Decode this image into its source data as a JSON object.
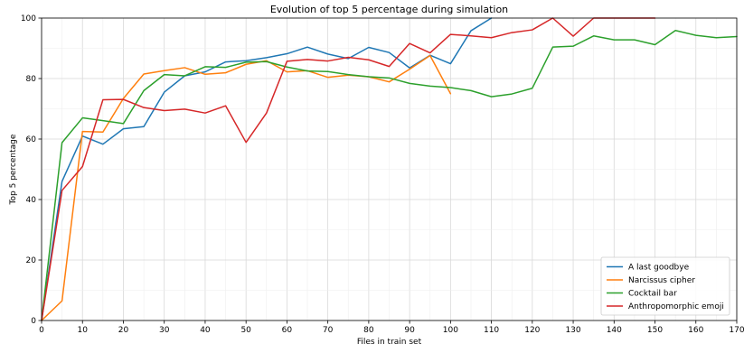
{
  "chart_data": {
    "type": "line",
    "title": "Evolution of top 5 percentage during simulation",
    "xlabel": "Files in train set",
    "ylabel": "Top 5 percentage",
    "xlim": [
      0,
      170
    ],
    "ylim": [
      0,
      100
    ],
    "x_ticks": [
      0,
      10,
      20,
      30,
      40,
      50,
      60,
      70,
      80,
      90,
      100,
      110,
      120,
      130,
      140,
      150,
      160,
      170
    ],
    "y_ticks": [
      0,
      20,
      40,
      60,
      80,
      100
    ],
    "grid": true,
    "legend_position": "bottom-right",
    "series": [
      {
        "name": "A last goodbye",
        "color": "#1f77b4",
        "x": [
          0,
          5,
          10,
          15,
          20,
          25,
          30,
          35,
          40,
          45,
          50,
          55,
          60,
          65,
          70,
          75,
          80,
          85,
          90,
          95,
          100,
          105,
          110
        ],
        "y": [
          0,
          46,
          61,
          58.3,
          63.4,
          64.1,
          75.5,
          80.9,
          82.2,
          85.5,
          85.9,
          86.9,
          88.2,
          90.4,
          88.1,
          86.6,
          90.3,
          88.6,
          83.5,
          87.7,
          84.9,
          95.8,
          100
        ]
      },
      {
        "name": "Narcissus cipher",
        "color": "#ff7f0e",
        "x": [
          0,
          5,
          10,
          15,
          20,
          25,
          30,
          35,
          40,
          45,
          50,
          55,
          60,
          65,
          70,
          75,
          80,
          85,
          90,
          95,
          100
        ],
        "y": [
          0,
          6.5,
          62.5,
          62.3,
          73.4,
          81.5,
          82.6,
          83.6,
          81.4,
          81.9,
          84.7,
          85.9,
          82.2,
          82.6,
          80.4,
          81.1,
          80.6,
          78.9,
          83.1,
          87.6,
          75
        ]
      },
      {
        "name": "Cocktail bar",
        "color": "#2ca02c",
        "x": [
          0,
          5,
          10,
          15,
          20,
          25,
          30,
          35,
          40,
          45,
          50,
          55,
          60,
          65,
          70,
          75,
          80,
          85,
          90,
          95,
          100,
          105,
          110,
          115,
          120,
          125,
          130,
          135,
          140,
          145,
          150,
          155,
          160,
          165,
          170
        ],
        "y": [
          0,
          58.8,
          67,
          66.1,
          65.1,
          76,
          81.3,
          80.9,
          83.9,
          83.7,
          85.4,
          85.6,
          83.8,
          82.5,
          82.3,
          81.3,
          80.6,
          80.2,
          78.4,
          77.5,
          77,
          76,
          74,
          74.9,
          76.8,
          90.4,
          90.7,
          94.1,
          92.8,
          92.8,
          91.2,
          95.9,
          94.3,
          93.5,
          93.9
        ]
      },
      {
        "name": "Anthropomorphic emoji",
        "color": "#d62728",
        "x": [
          0,
          5,
          10,
          15,
          20,
          25,
          30,
          35,
          40,
          45,
          50,
          55,
          60,
          65,
          70,
          75,
          80,
          85,
          90,
          95,
          100,
          105,
          110,
          115,
          120,
          125,
          130,
          135,
          140,
          145,
          150
        ],
        "y": [
          0,
          43,
          50.9,
          73,
          73.1,
          70.4,
          69.4,
          69.9,
          68.6,
          71,
          58.9,
          68.6,
          85.7,
          86.3,
          85.8,
          87,
          86.2,
          84,
          91.6,
          88.5,
          94.6,
          94.1,
          93.5,
          95.2,
          96.1,
          100,
          94,
          100,
          100,
          100,
          100
        ]
      }
    ]
  }
}
